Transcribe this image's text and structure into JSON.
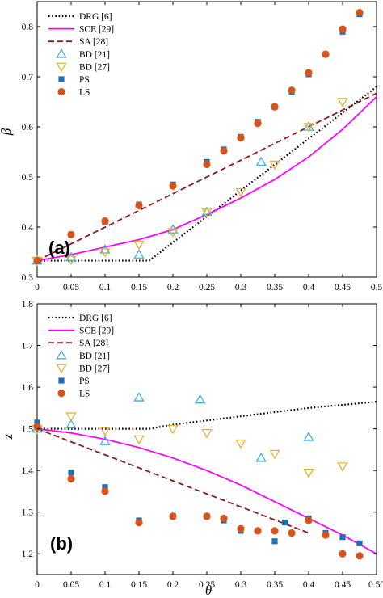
{
  "figure": {
    "panels": [
      {
        "tag": "(a)",
        "ylabel": "β"
      },
      {
        "tag": "(b)",
        "ylabel": "z",
        "xlabel": "θ"
      }
    ]
  },
  "colors": {
    "DRG": "#000000",
    "SCE": "#ff00ff",
    "SA": "#8b1a1a",
    "BD21": "#3fb0e6",
    "BD27": "#e8b030",
    "PS": "#1f6fb5",
    "LS": "#d95319"
  },
  "chart_data": [
    {
      "type": "line",
      "xlabel": "",
      "ylabel": "β",
      "xlim": [
        0,
        0.5
      ],
      "ylim": [
        0.3,
        0.85
      ],
      "xticks": [
        "0",
        "0.05",
        "0.1",
        "0.15",
        "0.2",
        "0.25",
        "0.3",
        "0.35",
        "0.4",
        "0.45",
        "0.5"
      ],
      "yticks": [
        "0.3",
        "0.4",
        "0.5",
        "0.6",
        "0.7",
        "0.8"
      ],
      "legend_position": "top-left",
      "grid": false,
      "series": [
        {
          "name": "DRG [6]",
          "style": "dotted-line",
          "color_key": "DRG",
          "x": [
            0,
            0.165,
            0.5
          ],
          "y": [
            0.333,
            0.333,
            0.68
          ]
        },
        {
          "name": "SCE [29]",
          "style": "solid-line",
          "color_key": "SCE",
          "x": [
            0,
            0.05,
            0.1,
            0.15,
            0.2,
            0.25,
            0.3,
            0.35,
            0.4,
            0.45,
            0.5
          ],
          "y": [
            0.333,
            0.345,
            0.36,
            0.375,
            0.395,
            0.425,
            0.458,
            0.495,
            0.54,
            0.595,
            0.66
          ]
        },
        {
          "name": "SA [28]",
          "style": "dashed-line",
          "color_key": "SA",
          "x": [
            0,
            0.5
          ],
          "y": [
            0.333,
            0.667
          ]
        },
        {
          "name": "BD [21]",
          "style": "triangle-up",
          "color_key": "BD21",
          "x": [
            0,
            0.05,
            0.1,
            0.15,
            0.2,
            0.25,
            0.33,
            0.4
          ],
          "y": [
            0.333,
            0.34,
            0.355,
            0.345,
            0.395,
            0.43,
            0.53,
            0.6
          ]
        },
        {
          "name": "BD [27]",
          "style": "triangle-down",
          "color_key": "BD27",
          "x": [
            0,
            0.05,
            0.1,
            0.15,
            0.2,
            0.25,
            0.3,
            0.35,
            0.4,
            0.45
          ],
          "y": [
            0.333,
            0.335,
            0.35,
            0.365,
            0.39,
            0.43,
            0.47,
            0.525,
            0.6,
            0.65
          ]
        },
        {
          "name": "PS",
          "style": "square",
          "color_key": "PS",
          "x": [
            0,
            0.05,
            0.1,
            0.15,
            0.2,
            0.25,
            0.275,
            0.3,
            0.325,
            0.35,
            0.375,
            0.4,
            0.425,
            0.45,
            0.475
          ],
          "y": [
            0.333,
            0.385,
            0.41,
            0.445,
            0.485,
            0.53,
            0.555,
            0.58,
            0.61,
            0.64,
            0.67,
            0.705,
            0.745,
            0.79,
            0.825
          ]
        },
        {
          "name": "LS",
          "style": "circle",
          "color_key": "LS",
          "x": [
            0,
            0.05,
            0.1,
            0.15,
            0.2,
            0.25,
            0.275,
            0.3,
            0.325,
            0.35,
            0.375,
            0.4,
            0.425,
            0.45,
            0.475
          ],
          "y": [
            0.333,
            0.385,
            0.412,
            0.443,
            0.482,
            0.525,
            0.552,
            0.578,
            0.607,
            0.64,
            0.673,
            0.708,
            0.745,
            0.795,
            0.828
          ]
        }
      ]
    },
    {
      "type": "line",
      "xlabel": "θ",
      "ylabel": "z",
      "xlim": [
        0,
        0.5
      ],
      "ylim": [
        1.15,
        1.8
      ],
      "xticks": [
        "0",
        "0.05",
        "0.1",
        "0.15",
        "0.2",
        "0.25",
        "0.3",
        "0.35",
        "0.4",
        "0.45",
        "0.50"
      ],
      "yticks": [
        "1.2",
        "1.3",
        "1.4",
        "1.5",
        "1.6",
        "1.7",
        "1.8"
      ],
      "legend_position": "top-left",
      "grid": false,
      "series": [
        {
          "name": "DRG [6]",
          "style": "dotted-line",
          "color_key": "DRG",
          "x": [
            0,
            0.165,
            0.2,
            0.3,
            0.4,
            0.5
          ],
          "y": [
            1.5,
            1.5,
            1.51,
            1.53,
            1.55,
            1.565
          ]
        },
        {
          "name": "SCE [29]",
          "style": "solid-line",
          "color_key": "SCE",
          "x": [
            0,
            0.05,
            0.1,
            0.15,
            0.2,
            0.25,
            0.3,
            0.35,
            0.4,
            0.45,
            0.5
          ],
          "y": [
            1.5,
            1.49,
            1.475,
            1.455,
            1.43,
            1.4,
            1.365,
            1.325,
            1.285,
            1.245,
            1.2
          ]
        },
        {
          "name": "SA [28]",
          "style": "dashed-line",
          "color_key": "SA",
          "x": [
            0,
            0.4
          ],
          "y": [
            1.5,
            1.25
          ]
        },
        {
          "name": "BD [21]",
          "style": "triangle-up",
          "color_key": "BD21",
          "x": [
            0,
            0.05,
            0.1,
            0.15,
            0.24,
            0.33,
            0.4
          ],
          "y": [
            1.5,
            1.51,
            1.47,
            1.575,
            1.57,
            1.43,
            1.48
          ]
        },
        {
          "name": "BD [27]",
          "style": "triangle-down",
          "color_key": "BD27",
          "x": [
            0,
            0.05,
            0.1,
            0.15,
            0.2,
            0.25,
            0.3,
            0.35,
            0.4,
            0.45
          ],
          "y": [
            1.5,
            1.53,
            1.495,
            1.475,
            1.5,
            1.49,
            1.465,
            1.44,
            1.395,
            1.41
          ]
        },
        {
          "name": "PS",
          "style": "square",
          "color_key": "PS",
          "x": [
            0,
            0.05,
            0.1,
            0.15,
            0.2,
            0.25,
            0.275,
            0.3,
            0.325,
            0.35,
            0.365,
            0.4,
            0.425,
            0.45,
            0.475
          ],
          "y": [
            1.515,
            1.395,
            1.36,
            1.28,
            1.29,
            1.29,
            1.28,
            1.255,
            1.255,
            1.23,
            1.275,
            1.285,
            1.25,
            1.24,
            1.225
          ]
        },
        {
          "name": "LS",
          "style": "circle",
          "color_key": "LS",
          "x": [
            0,
            0.05,
            0.1,
            0.15,
            0.2,
            0.25,
            0.275,
            0.3,
            0.325,
            0.35,
            0.375,
            0.4,
            0.425,
            0.45,
            0.475
          ],
          "y": [
            1.505,
            1.38,
            1.35,
            1.275,
            1.29,
            1.29,
            1.285,
            1.26,
            1.255,
            1.255,
            1.25,
            1.28,
            1.245,
            1.2,
            1.195
          ]
        }
      ]
    }
  ]
}
